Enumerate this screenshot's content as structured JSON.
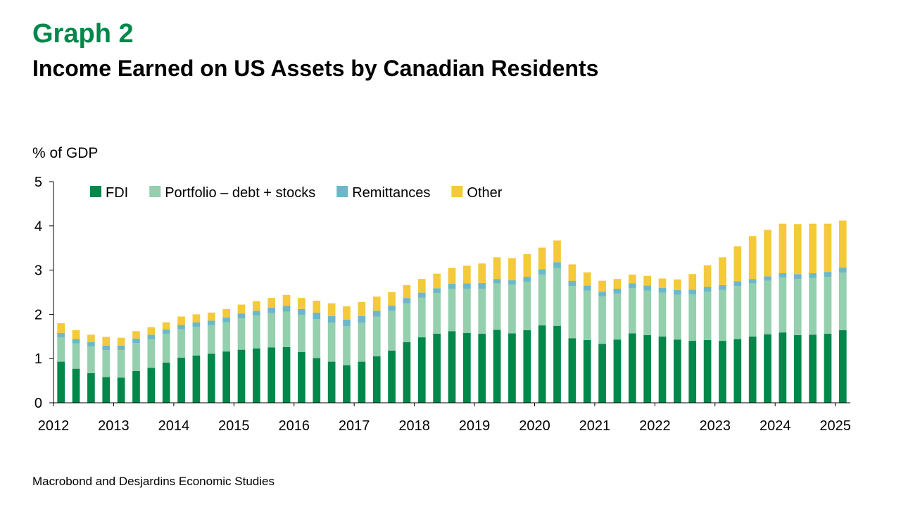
{
  "header": {
    "graph_label": "Graph 2",
    "title": "Income Earned on US Assets by Canadian Residents"
  },
  "footer": {
    "source": "Macrobond and Desjardins Economic Studies"
  },
  "chart_data": {
    "type": "bar",
    "stacked": true,
    "title": "Income Earned on US Assets by Canadian Residents",
    "ylabel": "% of GDP",
    "xlabel": "",
    "ylim": [
      0,
      5
    ],
    "yticks": [
      0,
      1,
      2,
      3,
      4,
      5
    ],
    "xtick_labels": [
      "2012",
      "2013",
      "2014",
      "2015",
      "2016",
      "2017",
      "2018",
      "2019",
      "2020",
      "2021",
      "2022",
      "2023",
      "2024",
      "2025"
    ],
    "categories": [
      "2012 Q1",
      "2012 Q2",
      "2012 Q3",
      "2012 Q4",
      "2013 Q1",
      "2013 Q2",
      "2013 Q3",
      "2013 Q4",
      "2014 Q1",
      "2014 Q2",
      "2014 Q3",
      "2014 Q4",
      "2015 Q1",
      "2015 Q2",
      "2015 Q3",
      "2015 Q4",
      "2016 Q1",
      "2016 Q2",
      "2016 Q3",
      "2016 Q4",
      "2017 Q1",
      "2017 Q2",
      "2017 Q3",
      "2017 Q4",
      "2018 Q1",
      "2018 Q2",
      "2018 Q3",
      "2018 Q4",
      "2019 Q1",
      "2019 Q2",
      "2019 Q3",
      "2019 Q4",
      "2020 Q1",
      "2020 Q2",
      "2020 Q3",
      "2020 Q4",
      "2021 Q1",
      "2021 Q2",
      "2021 Q3",
      "2021 Q4",
      "2022 Q1",
      "2022 Q2",
      "2022 Q3",
      "2022 Q4",
      "2023 Q1",
      "2023 Q2",
      "2023 Q3",
      "2023 Q4",
      "2024 Q1",
      "2024 Q2",
      "2024 Q3",
      "2024 Q4",
      "2025 Q1"
    ],
    "legend_position": "top-left",
    "series": [
      {
        "name": "FDI",
        "color": "#00874a",
        "values": [
          0.93,
          0.77,
          0.67,
          0.58,
          0.57,
          0.72,
          0.79,
          0.91,
          1.02,
          1.07,
          1.11,
          1.16,
          1.2,
          1.23,
          1.25,
          1.26,
          1.15,
          1.01,
          0.93,
          0.85,
          0.93,
          1.05,
          1.18,
          1.37,
          1.48,
          1.56,
          1.62,
          1.58,
          1.56,
          1.65,
          1.57,
          1.64,
          1.75,
          1.74,
          1.46,
          1.42,
          1.33,
          1.43,
          1.57,
          1.53,
          1.5,
          1.43,
          1.4,
          1.42,
          1.4,
          1.44,
          1.5,
          1.55,
          1.59,
          1.53,
          1.54,
          1.56,
          1.64
        ]
      },
      {
        "name": "Portfolio – debt + stocks",
        "color": "#94cfae",
        "values": [
          0.55,
          0.57,
          0.6,
          0.61,
          0.62,
          0.63,
          0.65,
          0.65,
          0.64,
          0.65,
          0.65,
          0.66,
          0.71,
          0.74,
          0.78,
          0.8,
          0.84,
          0.88,
          0.88,
          0.88,
          0.88,
          0.9,
          0.9,
          0.88,
          0.9,
          0.92,
          0.96,
          1.0,
          1.02,
          1.05,
          1.1,
          1.1,
          1.15,
          1.31,
          1.18,
          1.12,
          1.07,
          1.04,
          1.02,
          1.01,
          0.99,
          1.01,
          1.05,
          1.09,
          1.15,
          1.2,
          1.2,
          1.21,
          1.24,
          1.27,
          1.28,
          1.29,
          1.3
        ]
      },
      {
        "name": "Remittances",
        "color": "#6cb8c9",
        "values": [
          0.1,
          0.1,
          0.1,
          0.1,
          0.1,
          0.1,
          0.1,
          0.1,
          0.1,
          0.1,
          0.1,
          0.11,
          0.11,
          0.11,
          0.12,
          0.13,
          0.13,
          0.15,
          0.15,
          0.15,
          0.15,
          0.13,
          0.12,
          0.12,
          0.11,
          0.11,
          0.11,
          0.12,
          0.13,
          0.1,
          0.1,
          0.11,
          0.12,
          0.13,
          0.12,
          0.11,
          0.11,
          0.11,
          0.11,
          0.11,
          0.11,
          0.11,
          0.11,
          0.11,
          0.11,
          0.11,
          0.1,
          0.1,
          0.1,
          0.11,
          0.11,
          0.11,
          0.12
        ]
      },
      {
        "name": "Other",
        "color": "#f4c93a",
        "values": [
          0.22,
          0.2,
          0.17,
          0.2,
          0.18,
          0.17,
          0.17,
          0.16,
          0.19,
          0.18,
          0.18,
          0.19,
          0.2,
          0.22,
          0.22,
          0.25,
          0.25,
          0.27,
          0.29,
          0.3,
          0.32,
          0.32,
          0.3,
          0.29,
          0.31,
          0.33,
          0.36,
          0.4,
          0.44,
          0.49,
          0.5,
          0.51,
          0.49,
          0.49,
          0.37,
          0.3,
          0.25,
          0.22,
          0.2,
          0.22,
          0.21,
          0.24,
          0.35,
          0.49,
          0.63,
          0.79,
          0.97,
          1.05,
          1.12,
          1.13,
          1.12,
          1.09,
          1.06
        ]
      }
    ]
  }
}
